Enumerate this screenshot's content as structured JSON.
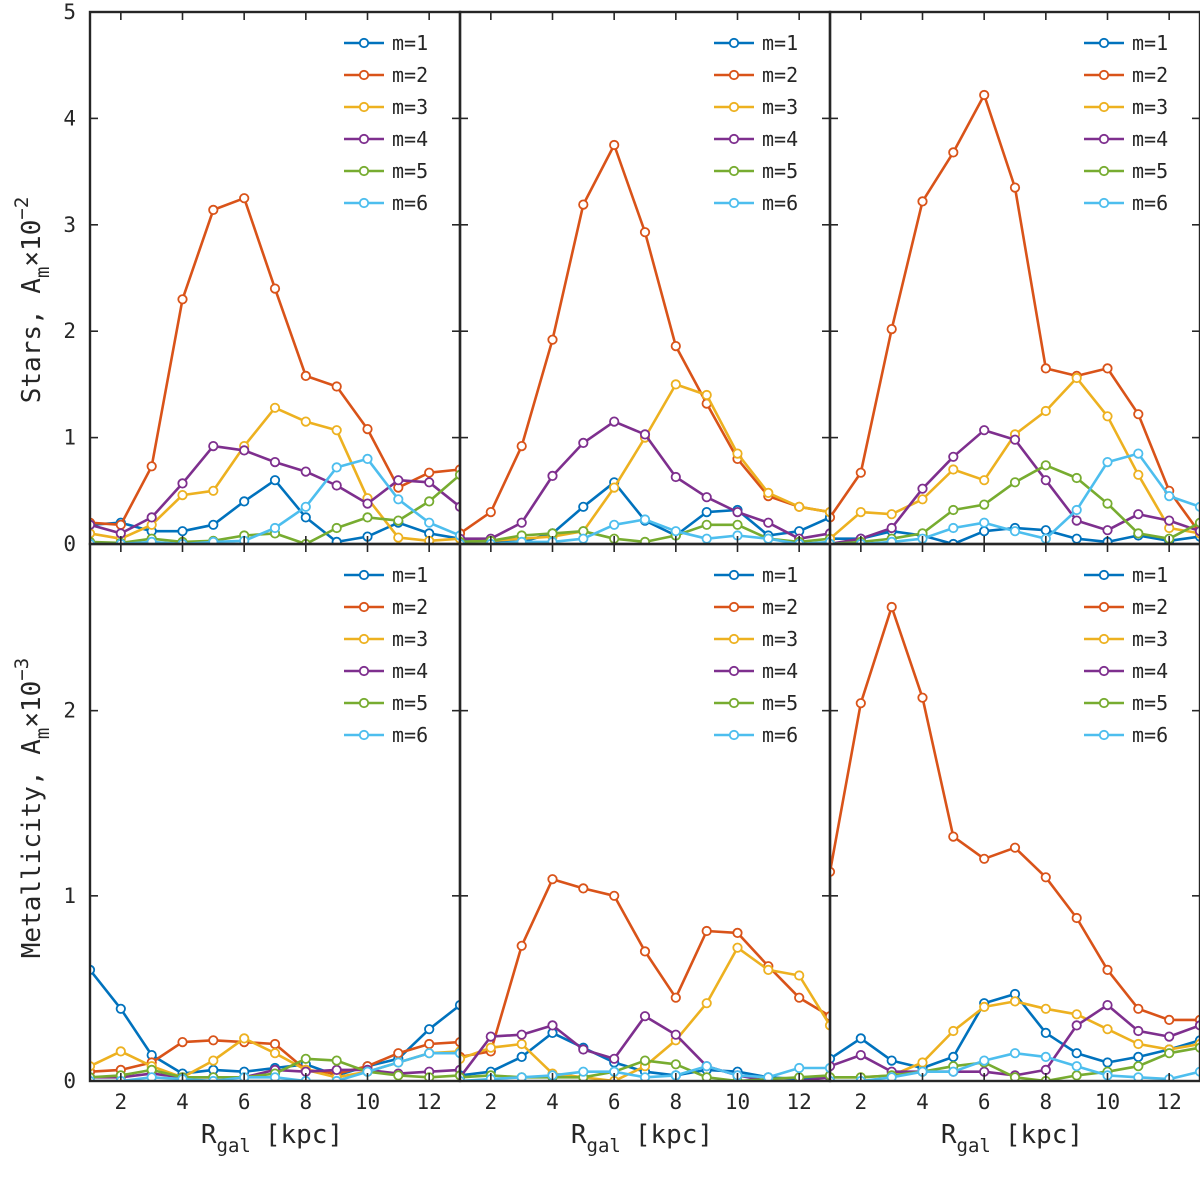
{
  "figure": {
    "xlabel_main": "R",
    "xlabel_sub": "gal",
    "xlabel_unit": "[kpc]",
    "ylabel_top": {
      "prefix": "Stars, ",
      "A": "A",
      "sub": "m",
      "times": "×10",
      "exp": "−2"
    },
    "ylabel_bottom": {
      "prefix": "Metallicity, ",
      "A": "A",
      "sub": "m",
      "times": "×10",
      "exp": "−3"
    }
  },
  "colors": {
    "m=1": "#0072BD",
    "m=2": "#D95319",
    "m=3": "#EDB120",
    "m=4": "#7E2F8E",
    "m=5": "#77AC30",
    "m=6": "#4DBEEE"
  },
  "chart_data": [
    {
      "type": "line",
      "id": "top-left",
      "row": "top",
      "col": 0,
      "xlim": [
        1,
        13
      ],
      "ylim": [
        0,
        5
      ],
      "xticks": [
        "2",
        "4",
        "6",
        "8",
        "10",
        "12"
      ],
      "yticks": [
        "0",
        "1",
        "2",
        "3",
        "4",
        "5"
      ],
      "x": [
        1,
        2,
        3,
        4,
        5,
        6,
        7,
        8,
        9,
        10,
        11,
        12,
        13
      ],
      "series": [
        {
          "name": "m=1",
          "values": [
            0.18,
            0.2,
            0.12,
            0.12,
            0.18,
            0.4,
            0.6,
            0.25,
            0.02,
            0.07,
            0.2,
            0.1,
            0.05
          ]
        },
        {
          "name": "m=2",
          "values": [
            0.2,
            0.18,
            0.73,
            2.3,
            3.14,
            3.25,
            2.4,
            1.58,
            1.48,
            1.08,
            0.53,
            0.67,
            0.7
          ]
        },
        {
          "name": "m=3",
          "values": [
            0.1,
            0.05,
            0.18,
            0.46,
            0.5,
            0.92,
            1.28,
            1.15,
            1.07,
            0.43,
            0.06,
            0.03,
            0.05
          ]
        },
        {
          "name": "m=4",
          "values": [
            0.18,
            0.1,
            0.25,
            0.57,
            0.92,
            0.88,
            0.77,
            0.68,
            0.55,
            0.38,
            0.6,
            0.58,
            0.35
          ]
        },
        {
          "name": "m=5",
          "values": [
            0.02,
            0.01,
            0.05,
            0.02,
            0.03,
            0.08,
            0.1,
            0.0,
            0.15,
            0.25,
            0.22,
            0.4,
            0.65
          ]
        },
        {
          "name": "m=6",
          "values": [
            0.0,
            0.0,
            0.02,
            0.0,
            0.02,
            0.03,
            0.15,
            0.35,
            0.72,
            0.8,
            0.42,
            0.2,
            0.08
          ]
        }
      ]
    },
    {
      "type": "line",
      "id": "top-middle",
      "row": "top",
      "col": 1,
      "xlim": [
        1,
        13
      ],
      "ylim": [
        0,
        5
      ],
      "xticks": [
        "2",
        "4",
        "6",
        "8",
        "10",
        "12"
      ],
      "yticks": [],
      "x": [
        1,
        2,
        3,
        4,
        5,
        6,
        7,
        8,
        9,
        10,
        11,
        12,
        13
      ],
      "series": [
        {
          "name": "m=1",
          "values": [
            0.05,
            0.02,
            0.02,
            0.1,
            0.35,
            0.58,
            0.22,
            0.08,
            0.3,
            0.32,
            0.08,
            0.12,
            0.25
          ]
        },
        {
          "name": "m=2",
          "values": [
            0.1,
            0.3,
            0.92,
            1.92,
            3.19,
            3.75,
            2.93,
            1.86,
            1.32,
            0.8,
            0.45,
            0.35,
            0.3
          ]
        },
        {
          "name": "m=3",
          "values": [
            0.02,
            0.03,
            0.05,
            0.07,
            0.12,
            0.53,
            1.0,
            1.5,
            1.4,
            0.85,
            0.48,
            0.35,
            0.3
          ]
        },
        {
          "name": "m=4",
          "values": [
            0.05,
            0.05,
            0.2,
            0.64,
            0.95,
            1.15,
            1.03,
            0.63,
            0.44,
            0.3,
            0.2,
            0.05,
            0.1
          ]
        },
        {
          "name": "m=5",
          "values": [
            0.02,
            0.03,
            0.08,
            0.1,
            0.12,
            0.05,
            0.02,
            0.08,
            0.18,
            0.18,
            0.05,
            0.02,
            0.05
          ]
        },
        {
          "name": "m=6",
          "values": [
            0.0,
            0.0,
            0.02,
            0.02,
            0.05,
            0.18,
            0.23,
            0.12,
            0.05,
            0.08,
            0.05,
            0.0,
            0.02
          ]
        }
      ]
    },
    {
      "type": "line",
      "id": "top-right",
      "row": "top",
      "col": 2,
      "xlim": [
        1,
        13
      ],
      "ylim": [
        0,
        5
      ],
      "xticks": [
        "2",
        "4",
        "6",
        "8",
        "10",
        "12"
      ],
      "yticks": [],
      "x": [
        1,
        2,
        3,
        4,
        5,
        6,
        7,
        8,
        9,
        10,
        11,
        12,
        13
      ],
      "series": [
        {
          "name": "m=1",
          "values": [
            0.05,
            0.05,
            0.12,
            0.08,
            0.0,
            0.12,
            0.15,
            0.13,
            0.05,
            0.02,
            0.08,
            0.03,
            0.07
          ]
        },
        {
          "name": "m=2",
          "values": [
            0.25,
            0.67,
            2.02,
            3.22,
            3.68,
            4.22,
            3.35,
            1.65,
            1.58,
            1.65,
            1.22,
            0.5,
            0.1
          ]
        },
        {
          "name": "m=3",
          "values": [
            0.05,
            0.3,
            0.28,
            0.42,
            0.7,
            0.6,
            1.03,
            1.25,
            1.56,
            1.2,
            0.65,
            0.15,
            0.1
          ]
        },
        {
          "name": "m=4",
          "values": [
            0.0,
            0.05,
            0.15,
            0.52,
            0.82,
            1.07,
            0.98,
            0.6,
            0.22,
            0.13,
            0.28,
            0.22,
            0.12
          ]
        },
        {
          "name": "m=5",
          "values": [
            0.0,
            0.02,
            0.05,
            0.1,
            0.32,
            0.37,
            0.58,
            0.74,
            0.62,
            0.38,
            0.1,
            0.05,
            0.2
          ]
        },
        {
          "name": "m=6",
          "values": [
            0.0,
            0.0,
            0.02,
            0.05,
            0.15,
            0.2,
            0.12,
            0.05,
            0.32,
            0.77,
            0.85,
            0.45,
            0.35
          ]
        }
      ]
    },
    {
      "type": "line",
      "id": "bottom-left",
      "row": "bottom",
      "col": 0,
      "xlim": [
        1,
        13
      ],
      "ylim": [
        0,
        2.9
      ],
      "xticks": [
        "2",
        "4",
        "6",
        "8",
        "10",
        "12"
      ],
      "yticks": [
        "0",
        "1",
        "2"
      ],
      "x": [
        1,
        2,
        3,
        4,
        5,
        6,
        7,
        8,
        9,
        10,
        11,
        12,
        13
      ],
      "series": [
        {
          "name": "m=1",
          "values": [
            0.6,
            0.39,
            0.14,
            0.04,
            0.06,
            0.05,
            0.07,
            0.09,
            0.03,
            0.08,
            0.12,
            0.28,
            0.41
          ]
        },
        {
          "name": "m=2",
          "values": [
            0.05,
            0.06,
            0.1,
            0.21,
            0.22,
            0.21,
            0.2,
            0.06,
            0.04,
            0.08,
            0.15,
            0.2,
            0.21
          ]
        },
        {
          "name": "m=3",
          "values": [
            0.08,
            0.16,
            0.08,
            0.02,
            0.11,
            0.23,
            0.15,
            0.06,
            0.02,
            0.05,
            0.1,
            0.15,
            0.16
          ]
        },
        {
          "name": "m=4",
          "values": [
            0.02,
            0.02,
            0.04,
            0.02,
            0.02,
            0.02,
            0.06,
            0.05,
            0.06,
            0.06,
            0.04,
            0.05,
            0.06
          ]
        },
        {
          "name": "m=5",
          "values": [
            0.02,
            0.03,
            0.06,
            0.02,
            0.02,
            0.02,
            0.04,
            0.12,
            0.11,
            0.05,
            0.03,
            0.02,
            0.03
          ]
        },
        {
          "name": "m=6",
          "values": [
            0.0,
            0.0,
            0.02,
            0.01,
            0.0,
            0.02,
            0.02,
            0.0,
            0.0,
            0.05,
            0.1,
            0.15,
            0.15
          ]
        }
      ]
    },
    {
      "type": "line",
      "id": "bottom-middle",
      "row": "bottom",
      "col": 1,
      "xlim": [
        1,
        13
      ],
      "ylim": [
        0,
        2.9
      ],
      "xticks": [
        "2",
        "4",
        "6",
        "8",
        "10",
        "12"
      ],
      "yticks": [],
      "x": [
        1,
        2,
        3,
        4,
        5,
        6,
        7,
        8,
        9,
        10,
        11,
        12,
        13
      ],
      "series": [
        {
          "name": "m=1",
          "values": [
            0.03,
            0.05,
            0.13,
            0.26,
            0.18,
            0.1,
            0.05,
            0.03,
            0.06,
            0.05,
            0.02,
            0.01,
            0.02
          ]
        },
        {
          "name": "m=2",
          "values": [
            0.13,
            0.16,
            0.73,
            1.09,
            1.04,
            1.0,
            0.7,
            0.45,
            0.81,
            0.8,
            0.62,
            0.45,
            0.35
          ]
        },
        {
          "name": "m=3",
          "values": [
            0.12,
            0.18,
            0.2,
            0.04,
            0.02,
            0.0,
            0.08,
            0.22,
            0.42,
            0.72,
            0.6,
            0.57,
            0.3
          ]
        },
        {
          "name": "m=4",
          "values": [
            0.02,
            0.24,
            0.25,
            0.3,
            0.17,
            0.12,
            0.35,
            0.25,
            0.08,
            0.03,
            0.0,
            0.0,
            0.02
          ]
        },
        {
          "name": "m=5",
          "values": [
            0.02,
            0.03,
            0.02,
            0.02,
            0.02,
            0.05,
            0.11,
            0.09,
            0.02,
            0.0,
            0.01,
            0.02,
            0.03
          ]
        },
        {
          "name": "m=6",
          "values": [
            0.0,
            0.01,
            0.02,
            0.03,
            0.05,
            0.05,
            0.02,
            0.03,
            0.08,
            0.03,
            0.02,
            0.07,
            0.07
          ]
        }
      ]
    },
    {
      "type": "line",
      "id": "bottom-right",
      "row": "bottom",
      "col": 2,
      "xlim": [
        1,
        13
      ],
      "ylim": [
        0,
        2.9
      ],
      "xticks": [
        "2",
        "4",
        "6",
        "8",
        "10",
        "12"
      ],
      "yticks": [],
      "x": [
        1,
        2,
        3,
        4,
        5,
        6,
        7,
        8,
        9,
        10,
        11,
        12,
        13
      ],
      "series": [
        {
          "name": "m=1",
          "values": [
            0.12,
            0.23,
            0.11,
            0.07,
            0.13,
            0.42,
            0.47,
            0.26,
            0.15,
            0.1,
            0.13,
            0.17,
            0.22
          ]
        },
        {
          "name": "m=2",
          "values": [
            1.13,
            2.04,
            2.56,
            2.07,
            1.32,
            1.2,
            1.26,
            1.1,
            0.88,
            0.6,
            0.39,
            0.33,
            0.33
          ]
        },
        {
          "name": "m=3",
          "values": [
            0.02,
            0.02,
            0.03,
            0.1,
            0.27,
            0.4,
            0.43,
            0.39,
            0.36,
            0.28,
            0.2,
            0.17,
            0.2
          ]
        },
        {
          "name": "m=4",
          "values": [
            0.08,
            0.14,
            0.05,
            0.05,
            0.05,
            0.05,
            0.03,
            0.06,
            0.3,
            0.41,
            0.27,
            0.24,
            0.3
          ]
        },
        {
          "name": "m=5",
          "values": [
            0.02,
            0.02,
            0.03,
            0.05,
            0.08,
            0.1,
            0.02,
            0.0,
            0.03,
            0.05,
            0.08,
            0.15,
            0.18
          ]
        },
        {
          "name": "m=6",
          "values": [
            0.0,
            0.0,
            0.02,
            0.05,
            0.05,
            0.11,
            0.15,
            0.13,
            0.08,
            0.03,
            0.02,
            0.01,
            0.05
          ]
        }
      ]
    }
  ]
}
